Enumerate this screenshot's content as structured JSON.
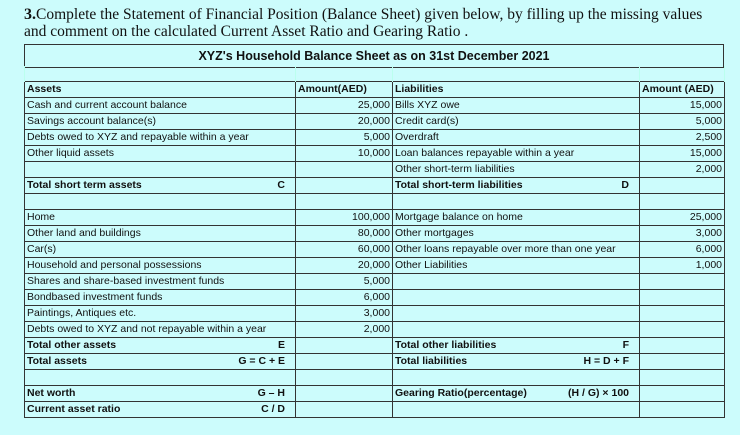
{
  "question": {
    "number": "3.",
    "text": "Complete the Statement of Financial Position (Balance Sheet) given below, by filling up the missing values and comment on the calculated Current Asset Ratio and Gearing Ratio ."
  },
  "sheet_title": "XYZ's Household Balance Sheet as on 31st December 2021",
  "headers": {
    "assets": "Assets",
    "amount_assets": "Amount(AED)",
    "liabilities": "Liabilities",
    "amount_liabilities": "Amount (AED)"
  },
  "short_term": [
    {
      "asset": "Cash and current account balance",
      "asset_amount": "25,000",
      "liability": "Bills XYZ owe",
      "liability_amount": "15,000"
    },
    {
      "asset": "Savings account balance(s)",
      "asset_amount": "20,000",
      "liability": "Credit card(s)",
      "liability_amount": "5,000"
    },
    {
      "asset": "Debts owed to XYZ and repayable within a year",
      "asset_amount": "5,000",
      "liability": "Overdraft",
      "liability_amount": "2,500"
    },
    {
      "asset": "Other liquid assets",
      "asset_amount": "10,000",
      "liability": "Loan balances repayable within a year",
      "liability_amount": "15,000"
    },
    {
      "asset": "",
      "asset_amount": "",
      "liability": "Other short-term liabilities",
      "liability_amount": "2,000"
    }
  ],
  "total_short": {
    "asset_label": "Total short term assets",
    "asset_code": "C",
    "liability_label": "Total short-term liabilities",
    "liability_code": "D"
  },
  "other": [
    {
      "asset": "Home",
      "asset_amount": "100,000",
      "liability": "Mortgage balance on home",
      "liability_amount": "25,000"
    },
    {
      "asset": "Other land and buildings",
      "asset_amount": "80,000",
      "liability": "Other mortgages",
      "liability_amount": "3,000"
    },
    {
      "asset": "Car(s)",
      "asset_amount": "60,000",
      "liability": "Other loans repayable over more than one year",
      "liability_amount": "6,000"
    },
    {
      "asset": "Household and personal possessions",
      "asset_amount": "20,000",
      "liability": "Other Liabilities",
      "liability_amount": "1,000"
    },
    {
      "asset": "Shares and share-based investment funds",
      "asset_amount": "5,000",
      "liability": "",
      "liability_amount": ""
    },
    {
      "asset": "Bondbased investment funds",
      "asset_amount": "6,000",
      "liability": "",
      "liability_amount": ""
    },
    {
      "asset": "Paintings, Antiques etc.",
      "asset_amount": "3,000",
      "liability": "",
      "liability_amount": ""
    },
    {
      "asset": "Debts owed to XYZ and not repayable within a year",
      "asset_amount": "2,000",
      "liability": "",
      "liability_amount": ""
    }
  ],
  "totals": {
    "other_assets": "Total other assets",
    "other_assets_code": "E",
    "other_liabilities": "Total other liabilities",
    "other_liabilities_code": "F",
    "assets": "Total assets",
    "assets_code": "G = C + E",
    "liabilities": "Total liabilities",
    "liabilities_code": "H = D + F"
  },
  "ratios": {
    "net_worth": "Net worth",
    "net_worth_formula": "G – H",
    "gearing": "Gearing Ratio(percentage)",
    "gearing_formula": "(H / G) × 100",
    "current": "Current asset ratio",
    "current_formula": "C / D"
  }
}
